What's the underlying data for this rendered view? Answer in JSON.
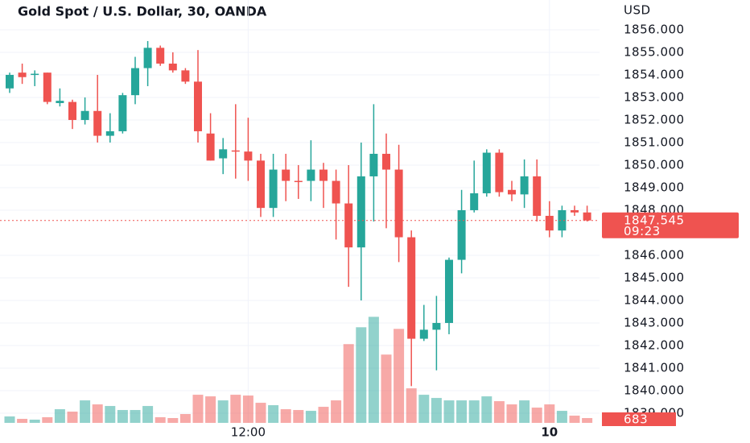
{
  "chart_data": {
    "type": "candlestick",
    "title": "Gold Spot / U.S. Dollar, 30, OANDA",
    "y_axis_label": "USD",
    "countdown": "09:23",
    "up_color": "#26a69a",
    "down_color": "#ef5350",
    "categories": [
      null,
      null,
      null,
      null,
      null,
      null,
      null,
      null,
      null,
      null,
      null,
      null,
      null,
      null,
      null,
      null,
      null,
      null,
      null,
      "12:00",
      null,
      null,
      null,
      null,
      null,
      null,
      null,
      null,
      null,
      null,
      null,
      null,
      null,
      null,
      null,
      null,
      null,
      null,
      null,
      null,
      null,
      null,
      null,
      "10",
      null,
      null,
      null
    ],
    "open": [
      1853.4,
      1854.1,
      1854.0,
      1854.1,
      1852.75,
      1852.8,
      1852.0,
      1852.4,
      1851.3,
      1851.5,
      1853.1,
      1854.3,
      1855.2,
      1854.5,
      1854.2,
      1853.7,
      1851.4,
      1850.3,
      1850.65,
      1850.6,
      1850.2,
      1848.1,
      1849.8,
      1849.3,
      1849.3,
      1849.8,
      1849.3,
      1848.3,
      1846.35,
      1849.5,
      1850.5,
      1849.8,
      1846.8,
      1842.3,
      1842.7,
      1843.0,
      1845.8,
      1848.0,
      1848.75,
      1850.55,
      1848.9,
      1848.7,
      1849.5,
      1847.75,
      1847.1,
      1848.0,
      1847.9
    ],
    "high": [
      1854.1,
      1854.5,
      1854.2,
      1854.1,
      1853.4,
      1852.9,
      1853.0,
      1854.0,
      1852.3,
      1853.2,
      1854.8,
      1855.5,
      1855.3,
      1855.0,
      1854.3,
      1855.1,
      1852.3,
      1851.2,
      1852.7,
      1852.1,
      1850.5,
      1850.5,
      1850.5,
      1850.0,
      1851.1,
      1850.1,
      1849.8,
      1850.0,
      1851.0,
      1852.7,
      1851.4,
      1850.9,
      1847.1,
      1843.8,
      1844.2,
      1845.9,
      1848.9,
      1850.2,
      1850.7,
      1850.7,
      1849.3,
      1850.25,
      1850.25,
      1848.4,
      1848.2,
      1848.2,
      1848.2
    ],
    "low": [
      1853.2,
      1853.6,
      1853.5,
      1852.7,
      1852.6,
      1851.6,
      1851.8,
      1851.0,
      1851.0,
      1851.4,
      1852.7,
      1853.5,
      1854.4,
      1854.1,
      1853.6,
      1851.0,
      1850.2,
      1849.6,
      1849.4,
      1849.3,
      1847.7,
      1847.7,
      1848.4,
      1848.5,
      1848.4,
      1848.1,
      1846.7,
      1844.6,
      1844.0,
      1847.5,
      1847.2,
      1845.7,
      1840.2,
      1842.2,
      1840.9,
      1842.5,
      1845.2,
      1847.9,
      1848.6,
      1848.6,
      1848.4,
      1848.1,
      1847.5,
      1846.8,
      1846.8,
      1847.75,
      1847.5
    ],
    "close": [
      1854.0,
      1853.9,
      1854.05,
      1852.8,
      1852.85,
      1852.0,
      1852.4,
      1851.3,
      1851.5,
      1853.1,
      1854.3,
      1855.2,
      1854.5,
      1854.2,
      1853.7,
      1851.5,
      1850.2,
      1850.7,
      1850.6,
      1850.2,
      1848.1,
      1849.8,
      1849.3,
      1849.25,
      1849.8,
      1849.3,
      1848.3,
      1846.35,
      1849.5,
      1850.5,
      1849.8,
      1846.8,
      1842.3,
      1842.7,
      1843.0,
      1845.8,
      1848.0,
      1848.75,
      1850.55,
      1848.8,
      1848.7,
      1849.5,
      1847.75,
      1847.1,
      1848.0,
      1847.9,
      1847.545
    ],
    "volume": [
      912,
      570,
      456,
      798,
      1938,
      1596,
      3192,
      2622,
      2394,
      1824,
      1824,
      2394,
      798,
      684,
      1254,
      3990,
      3762,
      3192,
      3990,
      3876,
      2850,
      2508,
      1938,
      1824,
      1710,
      2280,
      3192,
      11172,
      13566,
      15048,
      9690,
      13338,
      4902,
      3990,
      3534,
      3192,
      3192,
      3192,
      3762,
      3078,
      2622,
      3192,
      2166,
      2622,
      1710,
      1026,
      683
    ],
    "volume_lim": [
      0,
      60000
    ],
    "ylim": [
      1838.57,
      1857.32
    ],
    "yticks": [
      {
        "value": 1839,
        "label": "1839.000"
      },
      {
        "value": 1840,
        "label": "1840.000"
      },
      {
        "value": 1841,
        "label": "1841.000"
      },
      {
        "value": 1842,
        "label": "1842.000"
      },
      {
        "value": 1843,
        "label": "1843.000"
      },
      {
        "value": 1844,
        "label": "1844.000"
      },
      {
        "value": 1845,
        "label": "1845.000"
      },
      {
        "value": 1846,
        "label": "1846.000"
      },
      {
        "value": 1848,
        "label": "1848.000"
      },
      {
        "value": 1849,
        "label": "1849.000"
      },
      {
        "value": 1850,
        "label": "1850.000"
      },
      {
        "value": 1851,
        "label": "1851.000"
      },
      {
        "value": 1852,
        "label": "1852.000"
      },
      {
        "value": 1853,
        "label": "1853.000"
      },
      {
        "value": 1854,
        "label": "1854.000"
      },
      {
        "value": 1855,
        "label": "1855.000"
      },
      {
        "value": 1856,
        "label": "1856.000"
      }
    ],
    "grid": true
  }
}
